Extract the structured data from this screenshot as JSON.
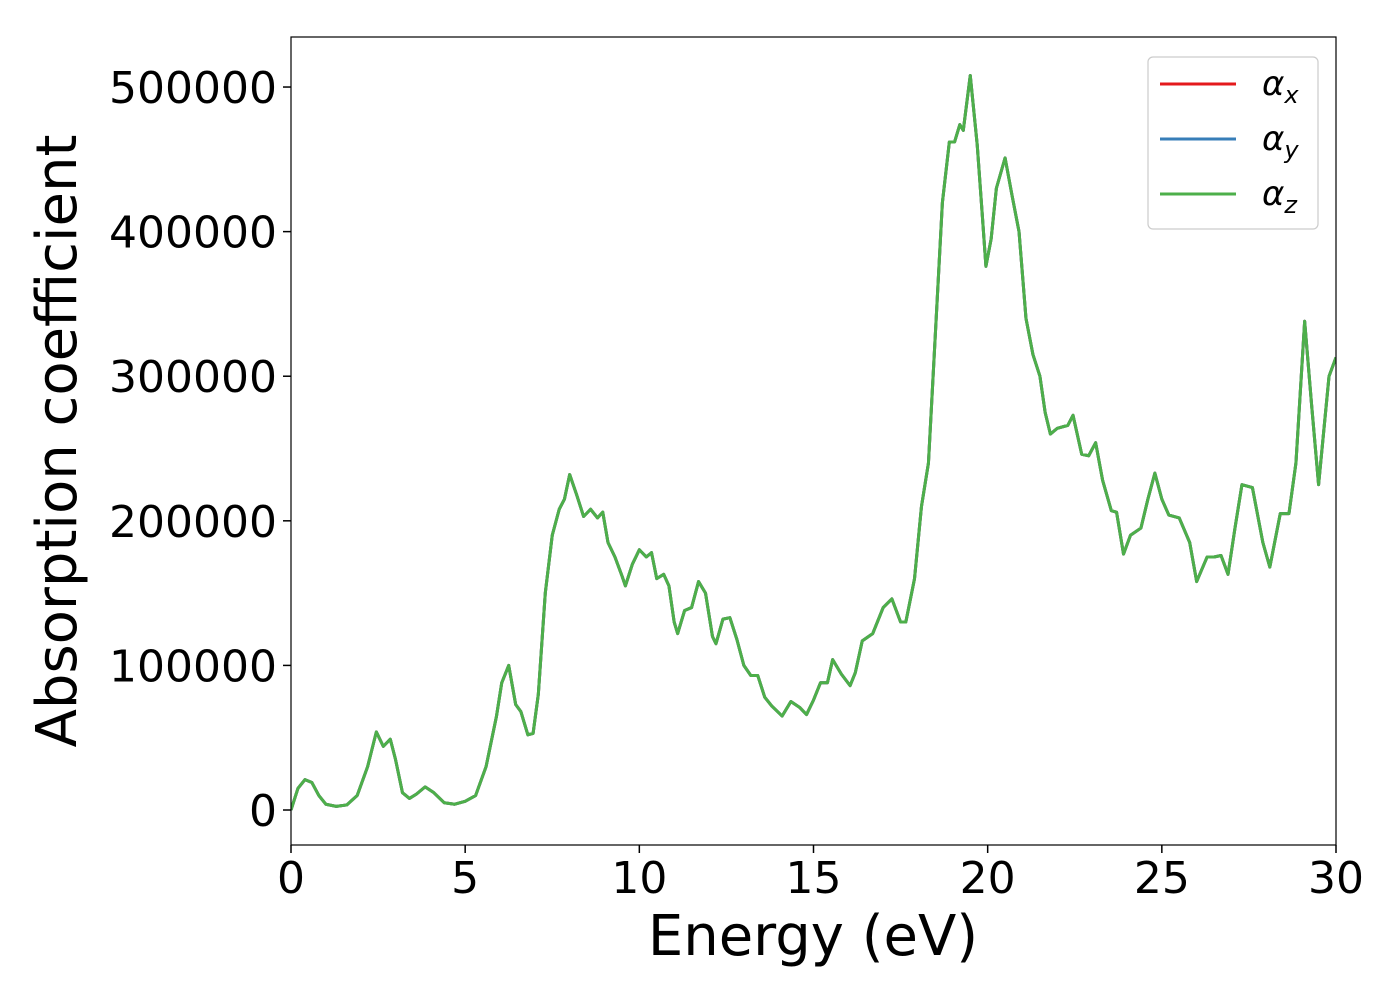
{
  "chart_data": {
    "type": "line",
    "xlabel": "Energy (eV)",
    "ylabel": "Absorption coefficient",
    "x": [
      0,
      0.2,
      0.4,
      0.6,
      0.8,
      1.0,
      1.3,
      1.6,
      1.9,
      2.2,
      2.45,
      2.65,
      2.85,
      3.0,
      3.2,
      3.4,
      3.6,
      3.85,
      4.1,
      4.4,
      4.7,
      5.0,
      5.3,
      5.6,
      5.9,
      6.05,
      6.25,
      6.45,
      6.6,
      6.8,
      6.95,
      7.1,
      7.3,
      7.5,
      7.7,
      7.85,
      8.0,
      8.2,
      8.4,
      8.6,
      8.8,
      8.95,
      9.1,
      9.3,
      9.5,
      9.6,
      9.8,
      10.0,
      10.2,
      10.35,
      10.5,
      10.7,
      10.85,
      11.0,
      11.1,
      11.3,
      11.5,
      11.7,
      11.9,
      12.1,
      12.2,
      12.4,
      12.6,
      12.8,
      13.0,
      13.2,
      13.4,
      13.6,
      13.8,
      14.1,
      14.35,
      14.6,
      14.8,
      15.0,
      15.2,
      15.4,
      15.55,
      15.8,
      16.05,
      16.2,
      16.4,
      16.7,
      17.0,
      17.25,
      17.5,
      17.65,
      17.9,
      18.1,
      18.3,
      18.5,
      18.7,
      18.9,
      19.05,
      19.2,
      19.3,
      19.5,
      19.7,
      19.85,
      19.95,
      20.1,
      20.25,
      20.5,
      20.7,
      20.9,
      21.1,
      21.3,
      21.5,
      21.65,
      21.8,
      22.0,
      22.3,
      22.45,
      22.7,
      22.9,
      23.1,
      23.3,
      23.55,
      23.7,
      23.9,
      24.1,
      24.4,
      24.6,
      24.8,
      25.0,
      25.2,
      25.5,
      25.8,
      26.0,
      26.3,
      26.5,
      26.7,
      26.9,
      27.1,
      27.3,
      27.6,
      27.9,
      28.1,
      28.4,
      28.65,
      28.85,
      29.1,
      29.3,
      29.5,
      29.8,
      30.0
    ],
    "series": [
      {
        "name": "αx",
        "color": "#e41a1c",
        "values": [
          0,
          15000,
          21000,
          19000,
          10000,
          4000,
          2500,
          3500,
          10000,
          30000,
          54000,
          44000,
          49000,
          35000,
          12000,
          8000,
          11000,
          16000,
          12000,
          5000,
          4000,
          6000,
          10000,
          30000,
          65000,
          88000,
          100000,
          73000,
          68000,
          52000,
          53000,
          80000,
          150000,
          190000,
          208000,
          215000,
          232000,
          218000,
          203000,
          208000,
          202000,
          206000,
          185000,
          175000,
          162000,
          155000,
          170000,
          180000,
          175000,
          178000,
          160000,
          163000,
          155000,
          130000,
          122000,
          138000,
          140000,
          158000,
          150000,
          120000,
          115000,
          132000,
          133000,
          118000,
          100000,
          93000,
          93000,
          78000,
          72000,
          65000,
          75000,
          71000,
          66000,
          76000,
          88000,
          88000,
          104000,
          94000,
          86000,
          95000,
          117000,
          122000,
          140000,
          146000,
          130000,
          130000,
          160000,
          210000,
          240000,
          330000,
          420000,
          462000,
          462000,
          474000,
          470000,
          508000,
          460000,
          410000,
          376000,
          395000,
          430000,
          451000,
          425000,
          400000,
          340000,
          315000,
          300000,
          275000,
          260000,
          264000,
          266000,
          273000,
          246000,
          245000,
          254000,
          228000,
          207000,
          206000,
          177000,
          190000,
          195000,
          215000,
          233000,
          215000,
          204000,
          202000,
          185000,
          158000,
          175000,
          175000,
          176000,
          163000,
          195000,
          225000,
          223000,
          185000,
          168000,
          205000,
          205000,
          240000,
          338000,
          280000,
          225000,
          300000,
          313000
        ]
      },
      {
        "name": "αy",
        "color": "#377eb8",
        "values": [
          0,
          15000,
          21000,
          19000,
          10000,
          4000,
          2500,
          3500,
          10000,
          30000,
          54000,
          44000,
          49000,
          35000,
          12000,
          8000,
          11000,
          16000,
          12000,
          5000,
          4000,
          6000,
          10000,
          30000,
          65000,
          88000,
          100000,
          73000,
          68000,
          52000,
          53000,
          80000,
          150000,
          190000,
          208000,
          215000,
          232000,
          218000,
          203000,
          208000,
          202000,
          206000,
          185000,
          175000,
          162000,
          155000,
          170000,
          180000,
          175000,
          178000,
          160000,
          163000,
          155000,
          130000,
          122000,
          138000,
          140000,
          158000,
          150000,
          120000,
          115000,
          132000,
          133000,
          118000,
          100000,
          93000,
          93000,
          78000,
          72000,
          65000,
          75000,
          71000,
          66000,
          76000,
          88000,
          88000,
          104000,
          94000,
          86000,
          95000,
          117000,
          122000,
          140000,
          146000,
          130000,
          130000,
          160000,
          210000,
          240000,
          330000,
          420000,
          462000,
          462000,
          474000,
          470000,
          508000,
          460000,
          410000,
          376000,
          395000,
          430000,
          451000,
          425000,
          400000,
          340000,
          315000,
          300000,
          275000,
          260000,
          264000,
          266000,
          273000,
          246000,
          245000,
          254000,
          228000,
          207000,
          206000,
          177000,
          190000,
          195000,
          215000,
          233000,
          215000,
          204000,
          202000,
          185000,
          158000,
          175000,
          175000,
          176000,
          163000,
          195000,
          225000,
          223000,
          185000,
          168000,
          205000,
          205000,
          240000,
          338000,
          280000,
          225000,
          300000,
          313000
        ]
      },
      {
        "name": "αz",
        "color": "#4daf4a",
        "values": [
          0,
          15000,
          21000,
          19000,
          10000,
          4000,
          2500,
          3500,
          10000,
          30000,
          54000,
          44000,
          49000,
          35000,
          12000,
          8000,
          11000,
          16000,
          12000,
          5000,
          4000,
          6000,
          10000,
          30000,
          65000,
          88000,
          100000,
          73000,
          68000,
          52000,
          53000,
          80000,
          150000,
          190000,
          208000,
          215000,
          232000,
          218000,
          203000,
          208000,
          202000,
          206000,
          185000,
          175000,
          162000,
          155000,
          170000,
          180000,
          175000,
          178000,
          160000,
          163000,
          155000,
          130000,
          122000,
          138000,
          140000,
          158000,
          150000,
          120000,
          115000,
          132000,
          133000,
          118000,
          100000,
          93000,
          93000,
          78000,
          72000,
          65000,
          75000,
          71000,
          66000,
          76000,
          88000,
          88000,
          104000,
          94000,
          86000,
          95000,
          117000,
          122000,
          140000,
          146000,
          130000,
          130000,
          160000,
          210000,
          240000,
          330000,
          420000,
          462000,
          462000,
          474000,
          470000,
          508000,
          460000,
          410000,
          376000,
          395000,
          430000,
          451000,
          425000,
          400000,
          340000,
          315000,
          300000,
          275000,
          260000,
          264000,
          266000,
          273000,
          246000,
          245000,
          254000,
          228000,
          207000,
          206000,
          177000,
          190000,
          195000,
          215000,
          233000,
          215000,
          204000,
          202000,
          185000,
          158000,
          175000,
          175000,
          176000,
          163000,
          195000,
          225000,
          223000,
          185000,
          168000,
          205000,
          205000,
          240000,
          338000,
          280000,
          225000,
          300000,
          313000
        ]
      }
    ],
    "xlim": [
      0,
      30
    ],
    "xticks": [
      0,
      5,
      10,
      15,
      20,
      25,
      30
    ],
    "ylim": [
      -24200,
      534600
    ],
    "yticks": [
      0,
      100000,
      200000,
      300000,
      400000,
      500000
    ],
    "legend": "upper right",
    "grid": false
  }
}
